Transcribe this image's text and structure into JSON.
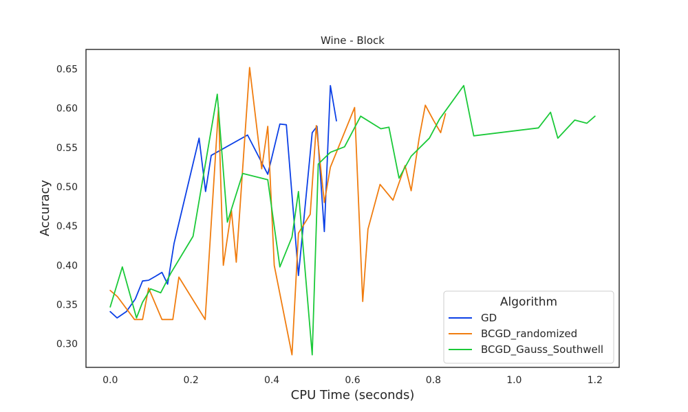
{
  "chart_data": {
    "type": "line",
    "title": "Wine - Block",
    "xlabel": "CPU Time (seconds)",
    "ylabel": "Accuracy",
    "xlim": [
      -0.06,
      1.26
    ],
    "ylim": [
      0.27,
      0.675
    ],
    "xticks": [
      0.0,
      0.2,
      0.4,
      0.6,
      0.8,
      1.0,
      1.2
    ],
    "xtick_labels": [
      "0.0",
      "0.2",
      "0.4",
      "0.6",
      "0.8",
      "1.0",
      "1.2"
    ],
    "yticks": [
      0.3,
      0.35,
      0.4,
      0.45,
      0.5,
      0.55,
      0.6,
      0.65
    ],
    "ytick_labels": [
      "0.30",
      "0.35",
      "0.40",
      "0.45",
      "0.50",
      "0.55",
      "0.60",
      "0.65"
    ],
    "grid": false,
    "legend": {
      "title": "Algorithm",
      "placement": "lower-right"
    },
    "series": [
      {
        "name": "GD",
        "color": "#0a3fe6",
        "x": [
          0.0,
          0.017,
          0.04,
          0.062,
          0.08,
          0.095,
          0.112,
          0.128,
          0.142,
          0.158,
          0.22,
          0.236,
          0.25,
          0.34,
          0.39,
          0.42,
          0.436,
          0.466,
          0.5,
          0.512,
          0.53,
          0.545,
          0.56
        ],
        "y": [
          0.341,
          0.333,
          0.341,
          0.357,
          0.38,
          0.381,
          0.386,
          0.391,
          0.376,
          0.428,
          0.562,
          0.494,
          0.54,
          0.566,
          0.516,
          0.58,
          0.579,
          0.387,
          0.569,
          0.577,
          0.443,
          0.629,
          0.584
        ]
      },
      {
        "name": "BCGD_randomized",
        "color": "#f07c0e",
        "x": [
          0.0,
          0.018,
          0.06,
          0.08,
          0.095,
          0.128,
          0.155,
          0.17,
          0.235,
          0.268,
          0.28,
          0.3,
          0.312,
          0.345,
          0.375,
          0.39,
          0.406,
          0.45,
          0.466,
          0.495,
          0.51,
          0.53,
          0.545,
          0.605,
          0.625,
          0.638,
          0.668,
          0.7,
          0.73,
          0.745,
          0.765,
          0.78,
          0.8,
          0.818,
          0.83
        ],
        "y": [
          0.368,
          0.36,
          0.331,
          0.331,
          0.371,
          0.331,
          0.331,
          0.385,
          0.331,
          0.601,
          0.4,
          0.47,
          0.404,
          0.652,
          0.523,
          0.577,
          0.4,
          0.286,
          0.441,
          0.465,
          0.578,
          0.48,
          0.525,
          0.601,
          0.354,
          0.446,
          0.503,
          0.483,
          0.527,
          0.495,
          0.563,
          0.604,
          0.585,
          0.569,
          0.593
        ]
      },
      {
        "name": "BCGD_Gauss_Southwell",
        "color": "#1ac938",
        "x": [
          0.0,
          0.03,
          0.065,
          0.08,
          0.1,
          0.125,
          0.15,
          0.205,
          0.265,
          0.29,
          0.328,
          0.39,
          0.42,
          0.45,
          0.466,
          0.5,
          0.515,
          0.545,
          0.58,
          0.62,
          0.67,
          0.69,
          0.715,
          0.745,
          0.79,
          0.815,
          0.875,
          0.9,
          1.06,
          1.09,
          1.108,
          1.15,
          1.18,
          1.2
        ],
        "y": [
          0.347,
          0.398,
          0.333,
          0.353,
          0.37,
          0.365,
          0.39,
          0.437,
          0.618,
          0.455,
          0.517,
          0.509,
          0.398,
          0.436,
          0.494,
          0.286,
          0.529,
          0.544,
          0.551,
          0.59,
          0.574,
          0.576,
          0.511,
          0.539,
          0.562,
          0.586,
          0.629,
          0.565,
          0.575,
          0.595,
          0.562,
          0.585,
          0.581,
          0.59
        ]
      }
    ]
  }
}
